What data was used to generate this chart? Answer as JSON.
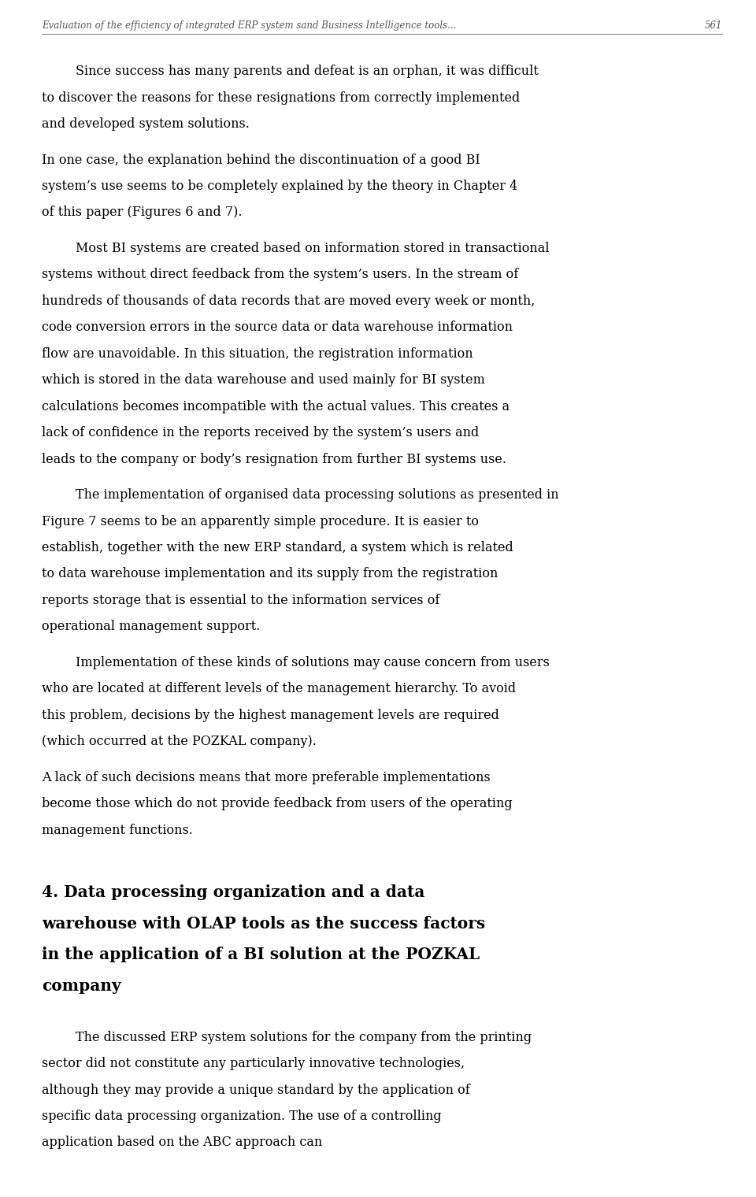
{
  "header_text": "Evaluation of the efficiency of integrated ERP system sand Business Intelligence tools...",
  "header_page": "561",
  "background_color": "#ffffff",
  "text_color": "#000000",
  "header_color": "#555555",
  "font_family": "serif",
  "paragraphs": [
    {
      "type": "body",
      "indent": true,
      "text": "Since success has many parents and defeat is an orphan, it was difficult to discover the reasons for these resignations from correctly implemented and developed system solutions."
    },
    {
      "type": "body",
      "indent": false,
      "text": "In one case, the explanation behind the discontinuation of a good BI system’s use seems to be completely explained by the theory in Chapter 4 of this paper (Figures 6 and 7)."
    },
    {
      "type": "body",
      "indent": true,
      "text": "Most BI systems are created based on information stored in transactional systems without direct feedback from the system’s users. In the stream of hundreds of thousands of data records that are moved every week or month, code conversion errors in the source data or data warehouse information flow are unavoidable. In this situation, the registration information which is stored in the data warehouse and used mainly for BI system calculations becomes incompatible with the actual values. This creates a lack of confidence in the reports received by the system’s users and leads to the company or body’s resignation from further BI systems use."
    },
    {
      "type": "body",
      "indent": true,
      "text": "The implementation of organised data processing solutions as presented in Figure 7 seems to be an apparently simple procedure. It is easier to establish, together with the new ERP standard, a system which is related to data warehouse implementation and its supply from the registration reports storage that is essential to the information services of operational management support."
    },
    {
      "type": "body",
      "indent": true,
      "text": "Implementation of these kinds of solutions may cause concern from users who are located at different levels of the management hierarchy. To avoid this problem, decisions by the highest management levels are required (which occurred at the POZKAL company)."
    },
    {
      "type": "body",
      "indent": false,
      "text": "A lack of such decisions means that more preferable implementations become those which do not provide feedback from users of the operating management functions."
    },
    {
      "type": "section_heading",
      "text": "4. Data processing organization and a data warehouse with OLAP tools as the success factors in the application of a BI solution at the POZKAL company"
    },
    {
      "type": "body",
      "indent": true,
      "text": "The discussed ERP system solutions for the company from the printing sector did not constitute any particularly innovative technologies, although they may provide a unique standard by the application of specific data processing organization. The use of a controlling application based on the ABC approach can"
    }
  ]
}
